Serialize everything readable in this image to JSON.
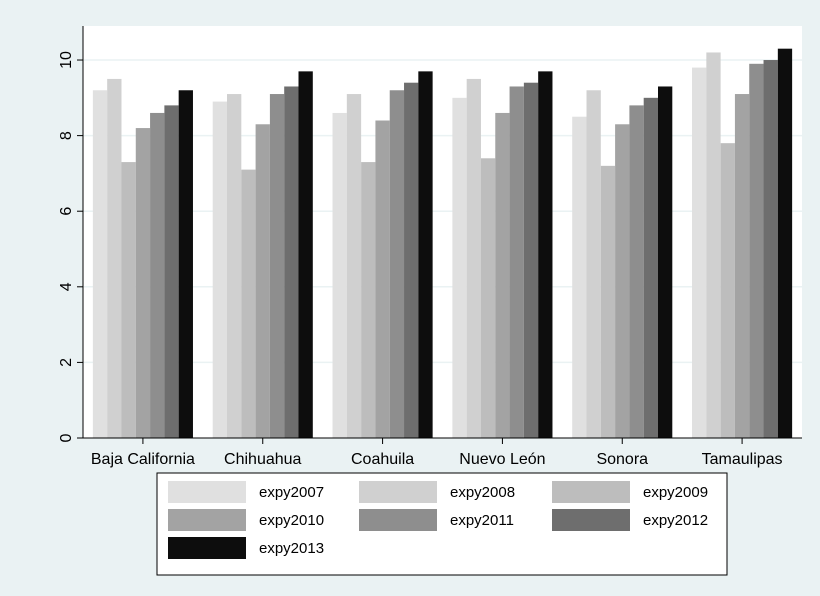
{
  "chart_data": {
    "type": "bar",
    "categories": [
      "Baja California",
      "Chihuahua",
      "Coahuila",
      "Nuevo León",
      "Sonora",
      "Tamaulipas"
    ],
    "series": [
      {
        "name": "expy2007",
        "color": "#e0e0e0",
        "values": [
          9.2,
          8.9,
          8.6,
          9.0,
          8.5,
          9.8
        ]
      },
      {
        "name": "expy2008",
        "color": "#d0d0d0",
        "values": [
          9.5,
          9.1,
          9.1,
          9.5,
          9.2,
          10.2
        ]
      },
      {
        "name": "expy2009",
        "color": "#bdbdbd",
        "values": [
          7.3,
          7.1,
          7.3,
          7.4,
          7.2,
          7.8
        ]
      },
      {
        "name": "expy2010",
        "color": "#a3a3a3",
        "values": [
          8.2,
          8.3,
          8.4,
          8.6,
          8.3,
          9.1
        ]
      },
      {
        "name": "expy2011",
        "color": "#8e8e8e",
        "values": [
          8.6,
          9.1,
          9.2,
          9.3,
          8.8,
          9.9
        ]
      },
      {
        "name": "expy2012",
        "color": "#6e6e6e",
        "values": [
          8.8,
          9.3,
          9.4,
          9.4,
          9.0,
          10.0
        ]
      },
      {
        "name": "expy2013",
        "color": "#0d0d0d",
        "values": [
          9.2,
          9.7,
          9.7,
          9.7,
          9.3,
          10.3
        ]
      }
    ],
    "title": "",
    "xlabel": "",
    "ylabel": "",
    "ylim": [
      0,
      10.9
    ],
    "yticks": [
      0,
      2,
      4,
      6,
      8,
      10
    ],
    "grid": true,
    "legend_position": "bottom",
    "colors": {
      "outer_background": "#eaf2f3",
      "plot_background": "#ffffff",
      "grid": "#eaf2f3",
      "axis": "#000000"
    }
  }
}
